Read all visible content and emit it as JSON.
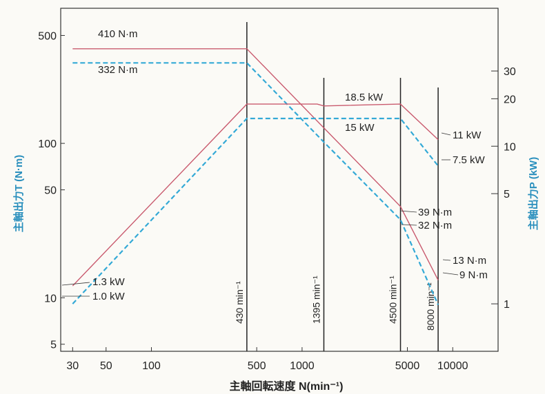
{
  "chart_data": {
    "type": "line",
    "title": "",
    "xlabel": "主軸回転速度 N(min⁻¹)",
    "ylabel_left": "主軸出力T (N·m)",
    "ylabel_right": "主軸出力P (kW)",
    "x_scale": "log",
    "y_scale": "log",
    "xlim": [
      25,
      20000
    ],
    "ylim_left": [
      4.5,
      750
    ],
    "ylim_right": [
      0.5,
      75
    ],
    "x_ticks": [
      {
        "value": 30,
        "label": "30"
      },
      {
        "value": 50,
        "label": "50"
      },
      {
        "value": 100,
        "label": "100"
      },
      {
        "value": 500,
        "label": "500"
      },
      {
        "value": 1000,
        "label": "1000"
      },
      {
        "value": 5000,
        "label": "5000"
      },
      {
        "value": 10000,
        "label": "10000"
      }
    ],
    "y_ticks_left": [
      {
        "value": 5,
        "label": "5"
      },
      {
        "value": 10,
        "label": "10"
      },
      {
        "value": 50,
        "label": "50"
      },
      {
        "value": 100,
        "label": "100"
      },
      {
        "value": 500,
        "label": "500"
      }
    ],
    "y_ticks_right": [
      {
        "value": 1,
        "label": "1"
      },
      {
        "value": 5,
        "label": "5"
      },
      {
        "value": 10,
        "label": "10"
      },
      {
        "value": 20,
        "label": "20"
      },
      {
        "value": 30,
        "label": "30"
      }
    ],
    "speed_markers": [
      {
        "value": 430,
        "label": "430 min⁻¹"
      },
      {
        "value": 1395,
        "label": "1395 min⁻¹"
      },
      {
        "value": 4500,
        "label": "4500 min⁻¹"
      },
      {
        "value": 8000,
        "label": "8000 min⁻¹"
      }
    ],
    "series": [
      {
        "axis": "left",
        "style": "solid",
        "color": "#c95a6e",
        "x": [
          30,
          430,
          1395,
          4500,
          8000
        ],
        "y": [
          410,
          410,
          126,
          39,
          13
        ]
      },
      {
        "axis": "left",
        "style": "dashed",
        "color": "#33a9d6",
        "x": [
          30,
          430,
          1395,
          4500,
          8000
        ],
        "y": [
          332,
          332,
          102,
          32,
          9
        ]
      },
      {
        "axis": "right",
        "style": "solid",
        "color": "#c95a6e",
        "x": [
          30,
          430,
          1260,
          1395,
          4500,
          8000
        ],
        "y": [
          1.3,
          18.5,
          18.5,
          18.0,
          18.5,
          11
        ]
      },
      {
        "axis": "right",
        "style": "dashed",
        "color": "#33a9d6",
        "x": [
          30,
          430,
          4500,
          8000
        ],
        "y": [
          1.0,
          15,
          15,
          7.5
        ]
      }
    ],
    "annotations": [
      {
        "text": "410 N·m"
      },
      {
        "text": "332 N·m"
      },
      {
        "text": "18.5 kW"
      },
      {
        "text": "15 kW"
      },
      {
        "text": "11 kW"
      },
      {
        "text": "7.5 kW"
      },
      {
        "text": "39 N·m"
      },
      {
        "text": "32 N·m"
      },
      {
        "text": "13 N·m"
      },
      {
        "text": "9 N·m"
      },
      {
        "text": "1.3 kW"
      },
      {
        "text": "1.0 kW"
      }
    ],
    "grid": false,
    "legend": "none"
  }
}
